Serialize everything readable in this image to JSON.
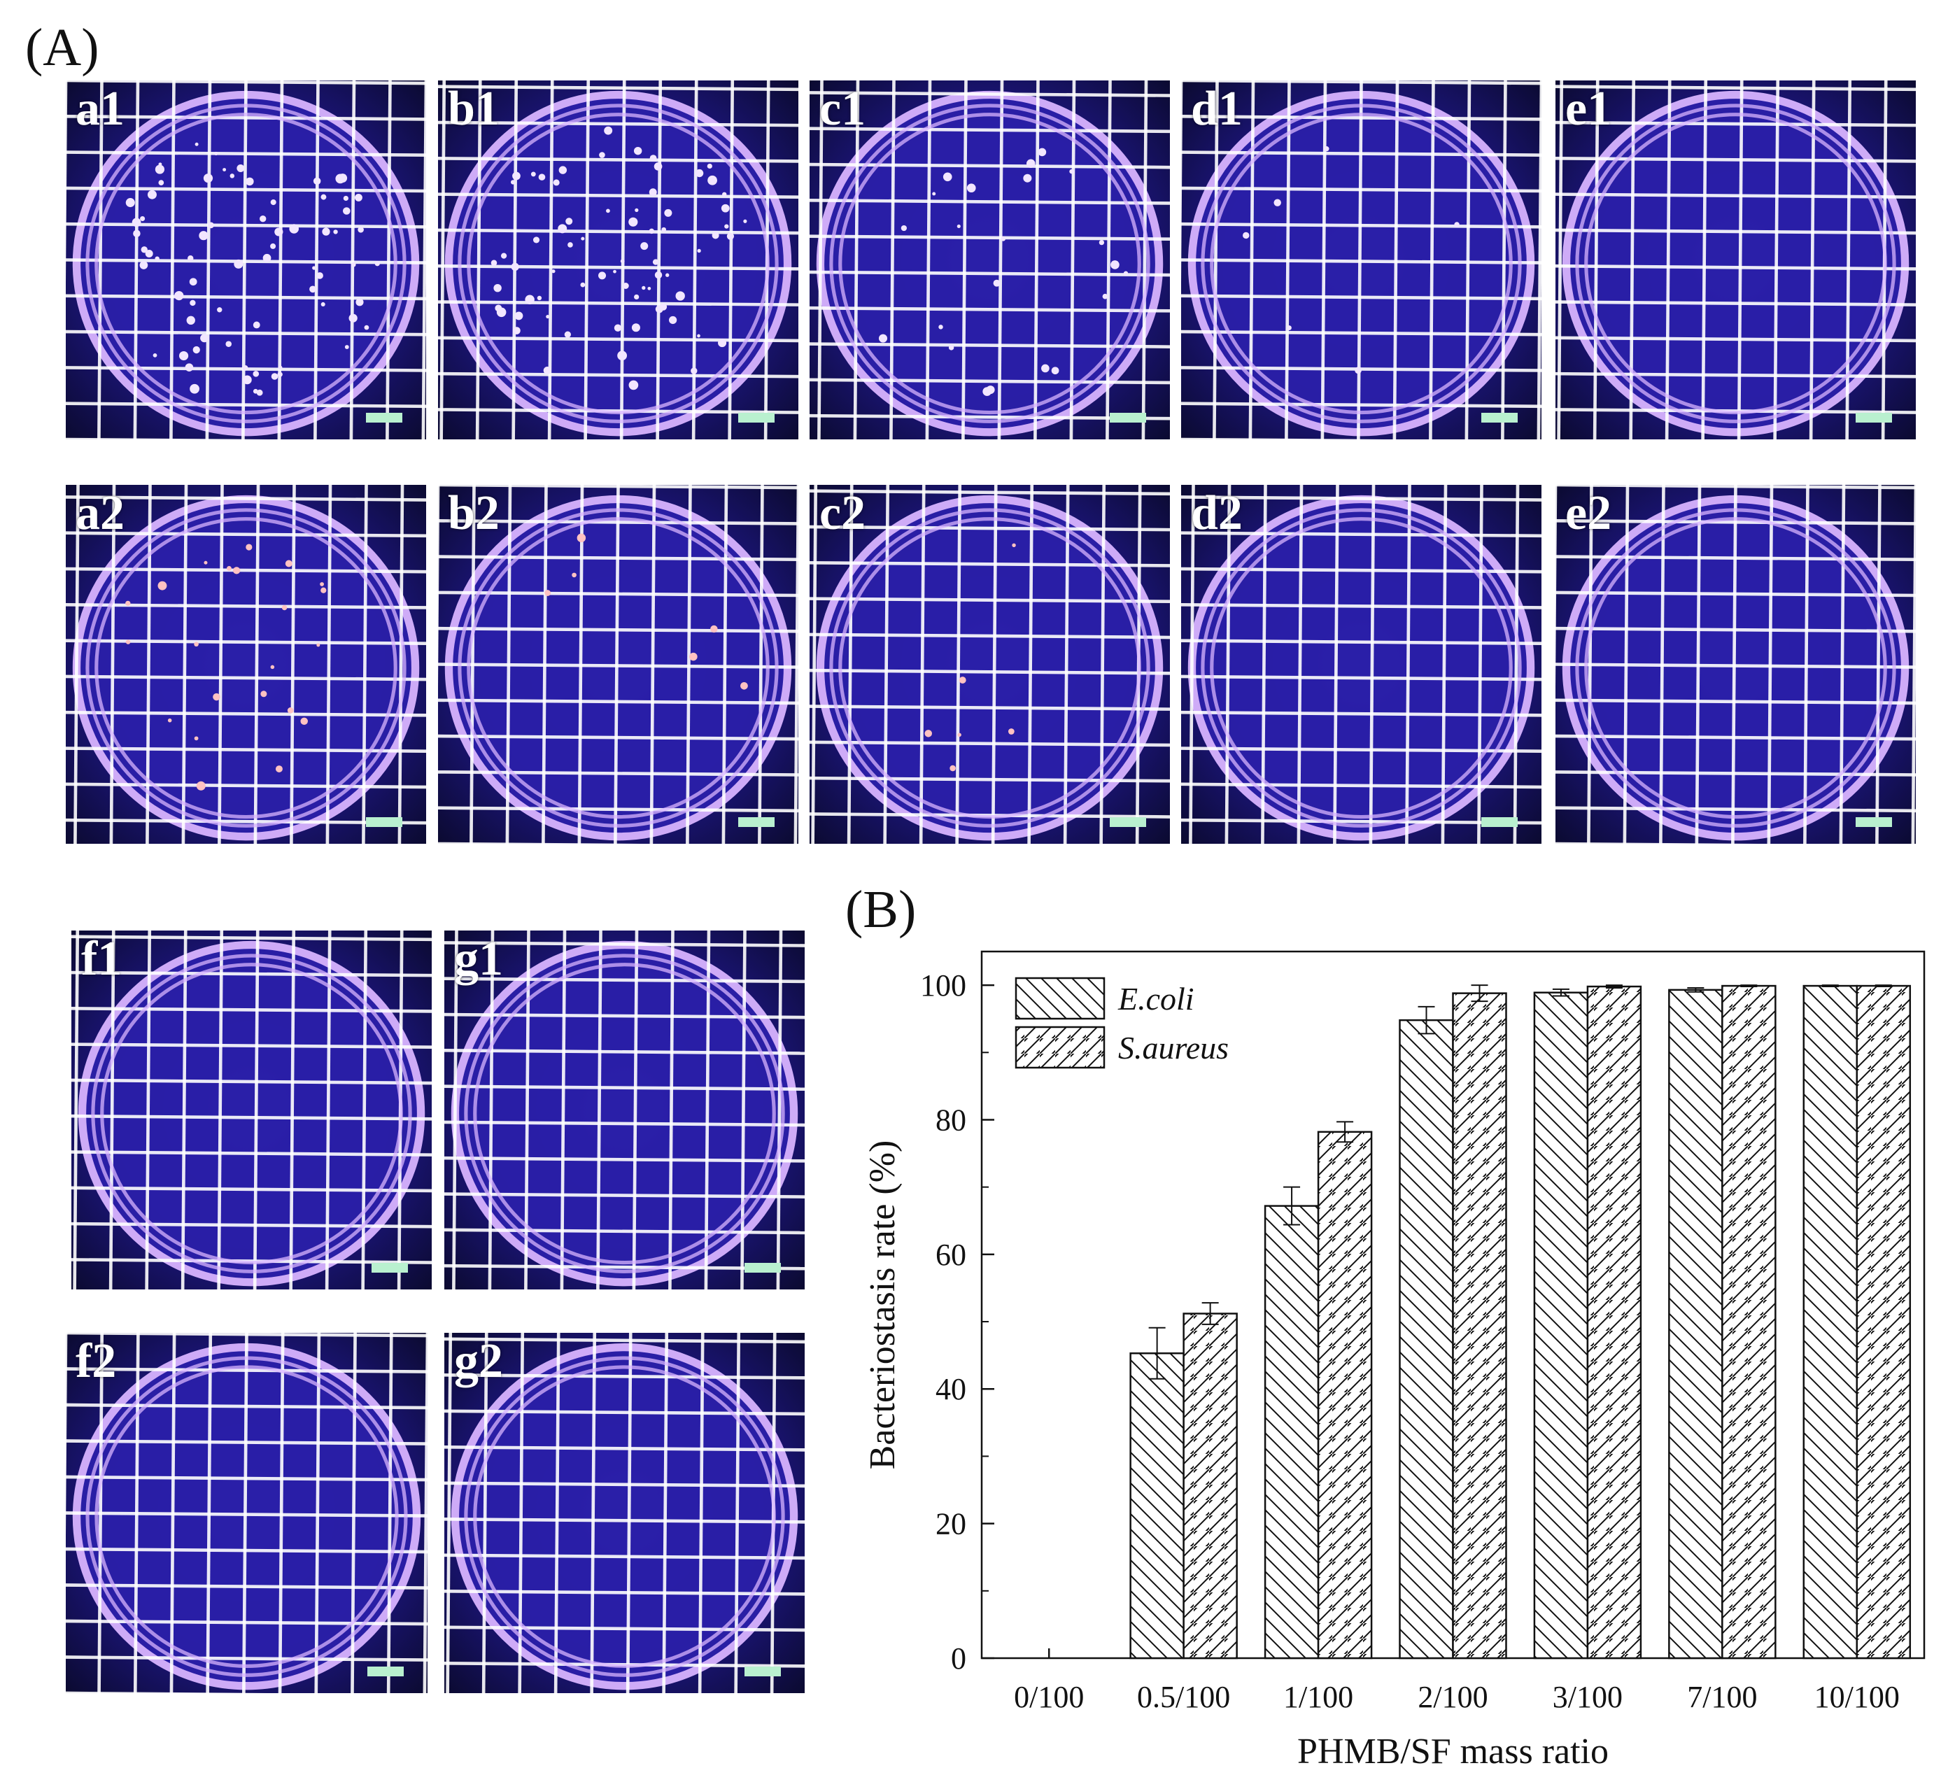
{
  "figure": {
    "panel_a_label": "(A)",
    "panel_b_label": "(B)",
    "plates": [
      {
        "id": "a1",
        "colonies": "many"
      },
      {
        "id": "b1",
        "colonies": "many"
      },
      {
        "id": "c1",
        "colonies": "several"
      },
      {
        "id": "d1",
        "colonies": "few"
      },
      {
        "id": "e1",
        "colonies": "none"
      },
      {
        "id": "a2",
        "colonies": "several"
      },
      {
        "id": "b2",
        "colonies": "few"
      },
      {
        "id": "c2",
        "colonies": "few"
      },
      {
        "id": "d2",
        "colonies": "none"
      },
      {
        "id": "e2",
        "colonies": "none"
      },
      {
        "id": "f1",
        "colonies": "none"
      },
      {
        "id": "g1",
        "colonies": "none"
      },
      {
        "id": "f2",
        "colonies": "none"
      },
      {
        "id": "g2",
        "colonies": "none"
      }
    ],
    "colors": {
      "plate_background": "#1d1680",
      "grid_lines": "#ffffff",
      "dish_rim": "#d8b4ff",
      "colony_row1": "#f2e6ff",
      "colony_row2": "#ffc2c2",
      "scale_bar": "#b9f0cf"
    }
  },
  "chart_data": {
    "type": "bar",
    "categories": [
      "0/100",
      "0.5/100",
      "1/100",
      "2/100",
      "3/100",
      "7/100",
      "10/100"
    ],
    "series": [
      {
        "name": "E.coli",
        "values": [
          0,
          45.3,
          67.2,
          94.8,
          98.9,
          99.3,
          99.9
        ],
        "errors": [
          0,
          3.8,
          2.8,
          2.0,
          0.5,
          0.3,
          0.1
        ],
        "hatch": "backslash"
      },
      {
        "name": "S.aureus",
        "values": [
          0,
          51.2,
          78.2,
          98.8,
          99.8,
          99.9,
          99.9
        ],
        "errors": [
          0,
          1.6,
          1.5,
          1.2,
          0.2,
          0.1,
          0.1
        ],
        "hatch": "slash"
      }
    ],
    "xlabel": "PHMB/SF mass ratio",
    "ylabel": "Bacteriostasis rate (%)",
    "ylim": [
      0,
      105
    ],
    "yticks": [
      0,
      20,
      40,
      60,
      80,
      100
    ],
    "grid": false,
    "legend_position": "top-left"
  }
}
